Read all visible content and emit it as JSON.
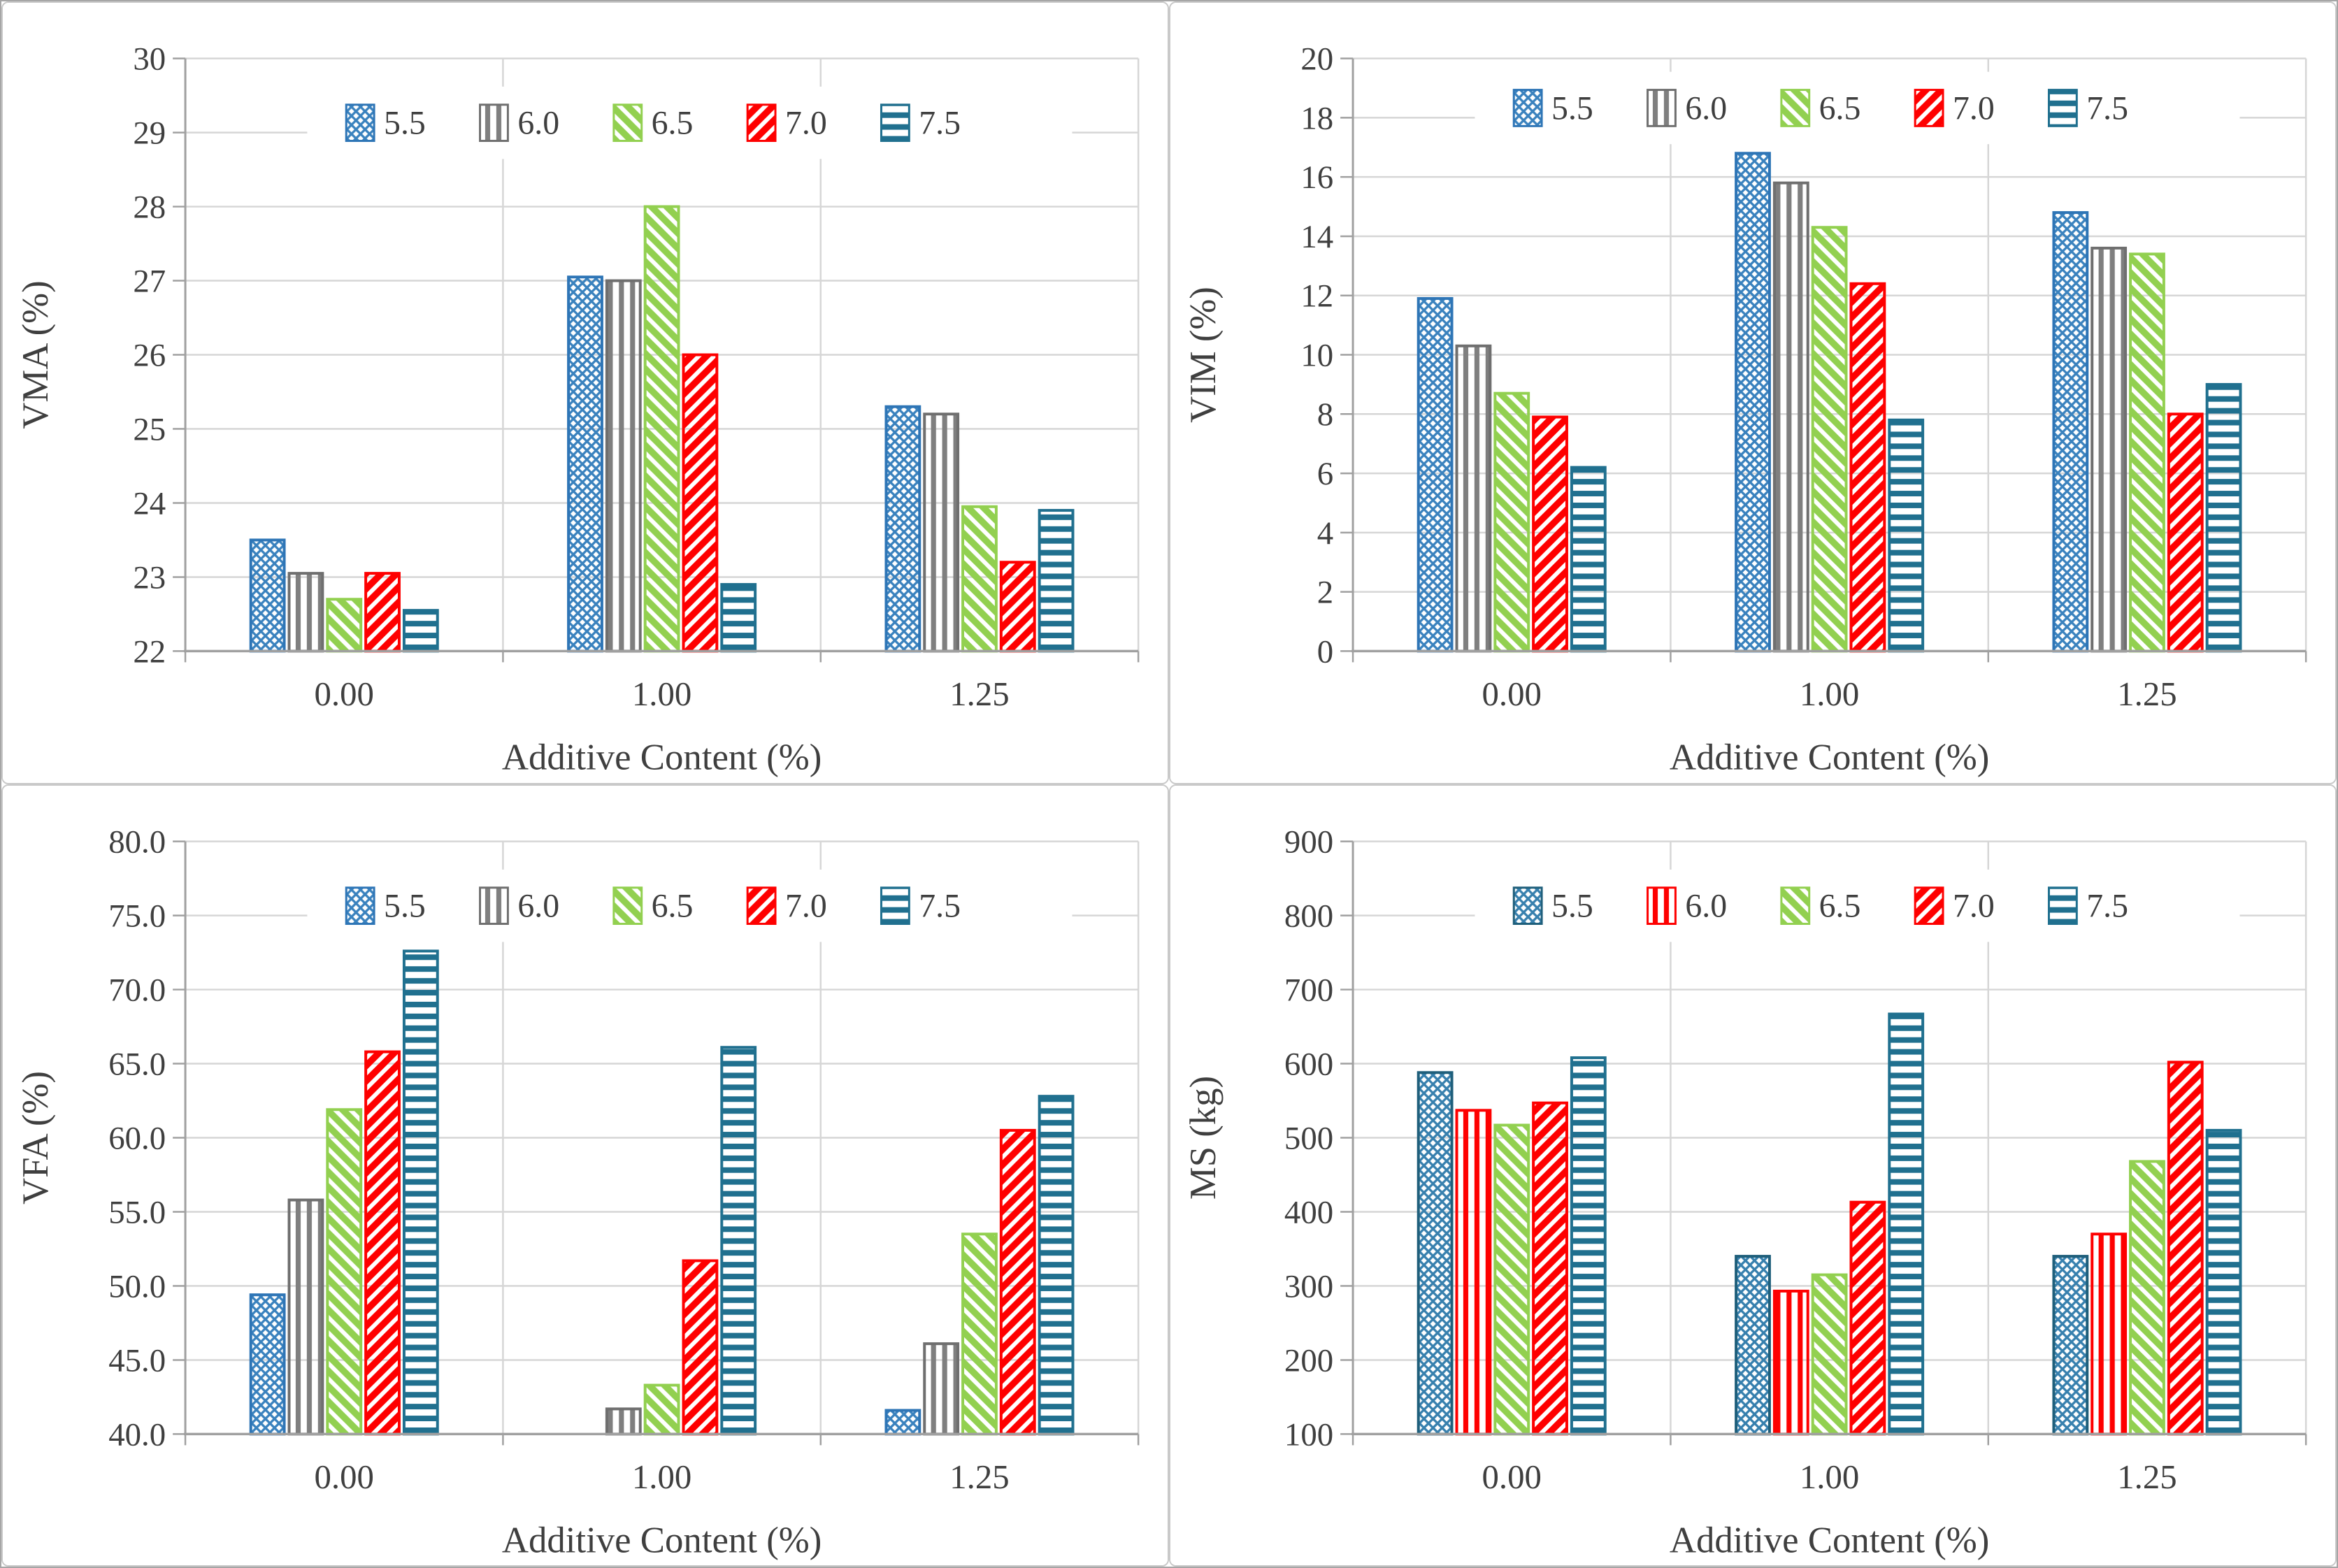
{
  "page": {
    "background": "#FFFFFF",
    "outer_border_color": "#A6A6A6",
    "panel_border_color": "#C9C9C9",
    "text_color": "#3F3F3F",
    "gridline_color": "#D6D6D6",
    "axis_color": "#A0A0A0",
    "legend_background": "#FFFFFF"
  },
  "chart_data": [
    {
      "type": "bar",
      "id": "vma-chart",
      "position": "top-left",
      "title": "",
      "xlabel": "Additive Content (%)",
      "ylabel": "VMA (%)",
      "categories": [
        "0.00",
        "1.00",
        "1.25"
      ],
      "ylim": [
        22,
        30
      ],
      "ytick_step": 1,
      "ytick_labels": [
        "22",
        "23",
        "24",
        "25",
        "26",
        "27",
        "28",
        "29",
        "30"
      ],
      "grid": true,
      "legend_position": "top-center",
      "legend_entries": [
        "5.5",
        "6.0",
        "6.5",
        "7.0",
        "7.5"
      ],
      "series": [
        {
          "name": "5.5",
          "color": "#3A82BE",
          "border": "#2E75B6",
          "pattern": "crosshatch-icon",
          "values": [
            23.5,
            27.05,
            25.3
          ]
        },
        {
          "name": "6.0",
          "color": "#7F7F7F",
          "border": "#6F6F6F",
          "pattern": "vertical-stripes-icon",
          "values": [
            23.05,
            27.0,
            25.2
          ]
        },
        {
          "name": "6.5",
          "color": "#92D050",
          "border": "#92D050",
          "pattern": "diagonal-down-stripes-icon",
          "values": [
            22.7,
            28.0,
            23.95
          ]
        },
        {
          "name": "7.0",
          "color": "#FE0000",
          "border": "#FE0000",
          "pattern": "diagonal-up-stripes-icon",
          "values": [
            23.05,
            26.0,
            23.2
          ]
        },
        {
          "name": "7.5",
          "color": "#20708F",
          "border": "#20708F",
          "pattern": "horizontal-stripes-icon",
          "values": [
            22.55,
            22.9,
            23.9
          ]
        }
      ]
    },
    {
      "type": "bar",
      "id": "vim-chart",
      "position": "top-right",
      "title": "",
      "xlabel": "Additive Content (%)",
      "ylabel": "VIM (%)",
      "categories": [
        "0.00",
        "1.00",
        "1.25"
      ],
      "ylim": [
        0,
        20
      ],
      "ytick_step": 2,
      "ytick_labels": [
        "0",
        "2",
        "4",
        "6",
        "8",
        "10",
        "12",
        "14",
        "16",
        "18",
        "20"
      ],
      "grid": true,
      "legend_position": "top-center",
      "legend_entries": [
        "5.5",
        "6.0",
        "6.5",
        "7.0",
        "7.5"
      ],
      "series": [
        {
          "name": "5.5",
          "color": "#3A82BE",
          "border": "#2E75B6",
          "pattern": "crosshatch-icon",
          "values": [
            11.9,
            16.8,
            14.8
          ]
        },
        {
          "name": "6.0",
          "color": "#7F7F7F",
          "border": "#6F6F6F",
          "pattern": "vertical-stripes-icon",
          "values": [
            10.3,
            15.8,
            13.6
          ]
        },
        {
          "name": "6.5",
          "color": "#92D050",
          "border": "#92D050",
          "pattern": "diagonal-down-stripes-icon",
          "values": [
            8.7,
            14.3,
            13.4
          ]
        },
        {
          "name": "7.0",
          "color": "#FE0000",
          "border": "#FE0000",
          "pattern": "diagonal-up-stripes-icon",
          "values": [
            7.9,
            12.4,
            8.0
          ]
        },
        {
          "name": "7.5",
          "color": "#20708F",
          "border": "#20708F",
          "pattern": "horizontal-stripes-icon",
          "values": [
            6.2,
            7.8,
            9.0
          ]
        }
      ]
    },
    {
      "type": "bar",
      "id": "vfa-chart",
      "position": "bottom-left",
      "title": "",
      "xlabel": "Additive Content (%)",
      "ylabel": "VFA (%)",
      "categories": [
        "0.00",
        "1.00",
        "1.25"
      ],
      "ylim": [
        40,
        80
      ],
      "ytick_step": 5,
      "ytick_labels": [
        "40.0",
        "45.0",
        "50.0",
        "55.0",
        "60.0",
        "65.0",
        "70.0",
        "75.0",
        "80.0"
      ],
      "grid": true,
      "legend_position": "top-center",
      "legend_entries": [
        "5.5",
        "6.0",
        "6.5",
        "7.0",
        "7.5"
      ],
      "series": [
        {
          "name": "5.5",
          "color": "#3A82BE",
          "border": "#2E75B6",
          "pattern": "crosshatch-icon",
          "values": [
            49.4,
            null,
            41.6
          ]
        },
        {
          "name": "6.0",
          "color": "#7F7F7F",
          "border": "#6F6F6F",
          "pattern": "vertical-stripes-icon",
          "values": [
            55.8,
            41.7,
            46.1
          ]
        },
        {
          "name": "6.5",
          "color": "#92D050",
          "border": "#92D050",
          "pattern": "diagonal-down-stripes-icon",
          "values": [
            61.9,
            43.3,
            53.5
          ]
        },
        {
          "name": "7.0",
          "color": "#FE0000",
          "border": "#FE0000",
          "pattern": "diagonal-up-stripes-icon",
          "values": [
            65.8,
            51.7,
            60.5
          ]
        },
        {
          "name": "7.5",
          "color": "#20708F",
          "border": "#20708F",
          "pattern": "horizontal-stripes-icon",
          "values": [
            72.6,
            66.1,
            62.8
          ]
        }
      ]
    },
    {
      "type": "bar",
      "id": "ms-chart",
      "position": "bottom-right",
      "title": "",
      "xlabel": "Additive Content (%)",
      "ylabel": "MS  (kg)",
      "categories": [
        "0.00",
        "1.00",
        "1.25"
      ],
      "ylim": [
        100,
        900
      ],
      "ytick_step": 100,
      "ytick_labels": [
        "100",
        "200",
        "300",
        "400",
        "500",
        "600",
        "700",
        "800",
        "900"
      ],
      "grid": true,
      "legend_position": "top-center",
      "legend_entries": [
        "5.5",
        "6.0",
        "6.5",
        "7.0",
        "7.5"
      ],
      "series": [
        {
          "name": "5.5",
          "color": "#3780AE",
          "border": "#1F5F7B",
          "pattern": "crosshatch-icon",
          "values": [
            588,
            340,
            340
          ]
        },
        {
          "name": "6.0",
          "color": "#FE0000",
          "border": "#FE0000",
          "pattern": "vertical-stripes-icon",
          "values": [
            537,
            293,
            370
          ]
        },
        {
          "name": "6.5",
          "color": "#92D050",
          "border": "#92D050",
          "pattern": "diagonal-down-stripes-icon",
          "values": [
            517,
            315,
            468
          ]
        },
        {
          "name": "7.0",
          "color": "#FE0000",
          "border": "#FE0000",
          "pattern": "diagonal-up-stripes-icon",
          "values": [
            547,
            413,
            602
          ]
        },
        {
          "name": "7.5",
          "color": "#20708F",
          "border": "#20708F",
          "pattern": "horizontal-stripes-icon",
          "values": [
            608,
            667,
            510
          ]
        }
      ]
    }
  ]
}
